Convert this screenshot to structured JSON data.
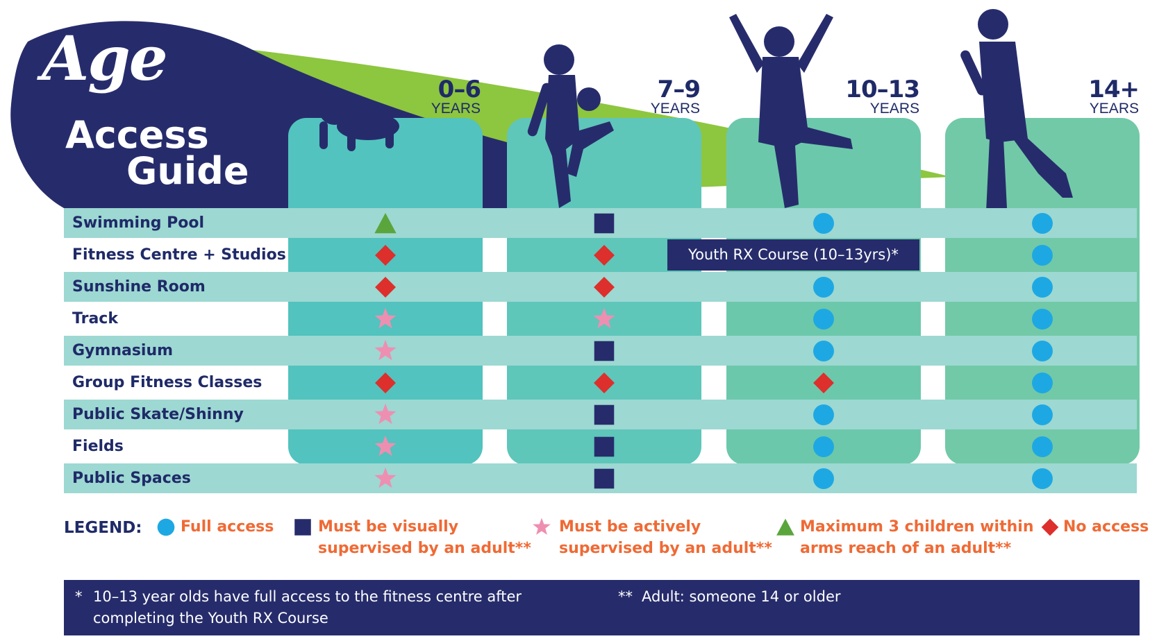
{
  "title": {
    "word1": "Age",
    "word2": "Access",
    "word3": "Guide"
  },
  "age_groups": [
    {
      "range": "0–6",
      "unit": "YEARS"
    },
    {
      "range": "7–9",
      "unit": "YEARS"
    },
    {
      "range": "10–13",
      "unit": "YEARS"
    },
    {
      "range": "14+",
      "unit": "YEARS"
    }
  ],
  "facilities": [
    {
      "name": "Swimming Pool",
      "access": [
        "triangle",
        "square",
        "circle",
        "circle"
      ]
    },
    {
      "name": "Fitness Centre + Studios",
      "access": [
        "diamond",
        "diamond",
        "youth-rx",
        "circle"
      ]
    },
    {
      "name": "Sunshine Room",
      "access": [
        "diamond",
        "diamond",
        "circle",
        "circle"
      ]
    },
    {
      "name": "Track",
      "access": [
        "star",
        "star",
        "circle",
        "circle"
      ]
    },
    {
      "name": "Gymnasium",
      "access": [
        "star",
        "square",
        "circle",
        "circle"
      ]
    },
    {
      "name": "Group Fitness Classes",
      "access": [
        "diamond",
        "diamond",
        "diamond",
        "circle"
      ]
    },
    {
      "name": "Public Skate/Shinny",
      "access": [
        "star",
        "square",
        "circle",
        "circle"
      ]
    },
    {
      "name": "Fields",
      "access": [
        "star",
        "square",
        "circle",
        "circle"
      ]
    },
    {
      "name": "Public Spaces",
      "access": [
        "star",
        "square",
        "circle",
        "circle"
      ]
    }
  ],
  "youth_rx_label": "Youth RX Course (10–13yrs)*",
  "legend": {
    "title": "LEGEND:",
    "items": [
      {
        "icon": "circle",
        "lines": [
          "Full access"
        ]
      },
      {
        "icon": "square",
        "lines": [
          "Must be visually",
          "supervised by an adult**"
        ]
      },
      {
        "icon": "star",
        "lines": [
          "Must be actively",
          "supervised by an adult**"
        ]
      },
      {
        "icon": "triangle",
        "lines": [
          "Maximum 3 children within",
          "arms reach of an adult**"
        ]
      },
      {
        "icon": "diamond",
        "lines": [
          "No access"
        ]
      }
    ]
  },
  "footnotes": [
    {
      "mark": "*",
      "lines": [
        "10–13 year olds have full access to the fitness centre after",
        "completing the Youth RX Course"
      ]
    },
    {
      "mark": "**",
      "lines": [
        "Adult: someone 14 or older"
      ]
    }
  ],
  "colors": {
    "navy": "#262c6b",
    "navy_text": "#1f2a68",
    "lime": "#8dc63f",
    "teal_col1": "#52c3be",
    "teal_col2": "#5fc6ba",
    "teal_col3": "#6cc8ab",
    "teal_col4": "#72c9a7",
    "row_shade": "#9dd8d2",
    "circle": "#1ea8e3",
    "square": "#262c6b",
    "star": "#ee8fb1",
    "triangle": "#5ba53d",
    "diamond": "#dd2f2c",
    "legend_text": "#ef6a35"
  },
  "icons": [
    "crawling-baby-silhouette",
    "child-kicking-ball-silhouette",
    "child-jumping-silhouette",
    "adult-running-silhouette"
  ]
}
